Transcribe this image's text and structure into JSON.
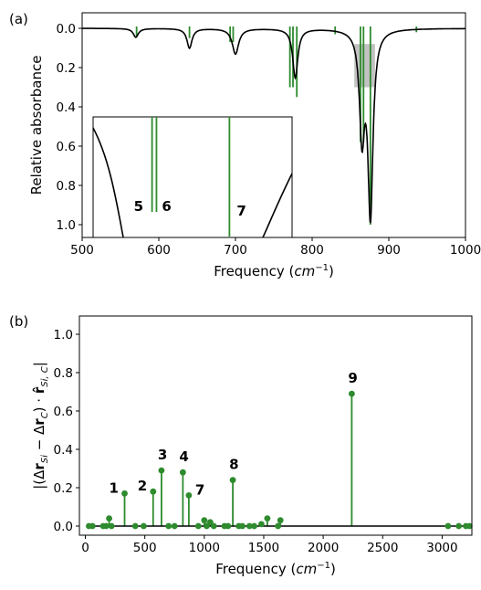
{
  "chart_data": [
    {
      "type": "line",
      "panel_label": "(a)",
      "xlabel_prefix": "Frequency (",
      "xlabel_unit": "cm",
      "xlabel_exp": "−1",
      "xlabel_suffix": ")",
      "ylabel": "Relative absorbance",
      "xlim": [
        500,
        1000
      ],
      "ylim_inverted": [
        0.0,
        1.1
      ],
      "xticks": [
        "500",
        "600",
        "700",
        "800",
        "900",
        "1000"
      ],
      "yticks": [
        "0.0",
        "0.2",
        "0.4",
        "0.6",
        "0.8",
        "1.0"
      ],
      "colors": {
        "spectrum": "#000000",
        "sticks": "#2e8b2e",
        "highlight": "#b3b3b3"
      },
      "spectrum_peaks": [
        {
          "center": 570,
          "height": 0.045,
          "width": 4
        },
        {
          "center": 640,
          "height": 0.1,
          "width": 4
        },
        {
          "center": 700,
          "height": 0.13,
          "width": 5
        },
        {
          "center": 778,
          "height": 0.25,
          "width": 4
        },
        {
          "center": 865,
          "height": 0.52,
          "width": 4
        },
        {
          "center": 876,
          "height": 0.93,
          "width": 4
        }
      ],
      "stick_frequencies": [
        571,
        640,
        693,
        697,
        771,
        775,
        780,
        830,
        863,
        867,
        876,
        936
      ],
      "stick_heights": [
        0.04,
        0.05,
        0.07,
        0.07,
        0.3,
        0.3,
        0.35,
        0.03,
        0.58,
        0.58,
        1.0,
        0.02
      ],
      "highlight_box": {
        "x": [
          855,
          882
        ],
        "y": [
          0.08,
          0.3
        ]
      },
      "inset": {
        "xlim": [
          855,
          882
        ],
        "ylim_inverted": [
          0.08,
          0.3
        ],
        "sticks": [
          {
            "label": "5",
            "x": 863
          },
          {
            "label": "6",
            "x": 863.6
          },
          {
            "label": "7",
            "x": 873.5
          }
        ]
      }
    },
    {
      "type": "stem",
      "panel_label": "(b)",
      "xlabel_prefix": "Frequency (",
      "xlabel_unit": "cm",
      "xlabel_exp": "−1",
      "xlabel_suffix": ")",
      "ylabel": "|(Δr_Si − Δr_C) · r̂_Si,C|",
      "xlim": [
        -50,
        3250
      ],
      "ylim": [
        -0.05,
        1.1
      ],
      "xticks": [
        "0",
        "500",
        "1000",
        "1500",
        "2000",
        "2500",
        "3000"
      ],
      "yticks": [
        "0.0",
        "0.2",
        "0.4",
        "0.6",
        "0.8",
        "1.0"
      ],
      "colors": {
        "stems": "#2e8b2e",
        "baseline": "#000000"
      },
      "x": [
        30,
        60,
        150,
        175,
        200,
        220,
        330,
        420,
        490,
        570,
        640,
        700,
        750,
        820,
        870,
        950,
        1000,
        1020,
        1050,
        1080,
        1170,
        1200,
        1240,
        1290,
        1320,
        1380,
        1420,
        1480,
        1530,
        1620,
        1640,
        2240,
        3050,
        3140,
        3200,
        3230
      ],
      "y": [
        0.0,
        0.0,
        0.0,
        0.0,
        0.04,
        0.0,
        0.17,
        0.0,
        0.0,
        0.18,
        0.29,
        0.0,
        0.0,
        0.28,
        0.16,
        0.0,
        0.03,
        0.0,
        0.02,
        0.0,
        0.0,
        0.0,
        0.24,
        0.0,
        0.0,
        0.0,
        0.0,
        0.01,
        0.04,
        0.0,
        0.03,
        0.69,
        0.0,
        0.0,
        0.0,
        0.0
      ],
      "labels": [
        {
          "text": "1",
          "x": 330,
          "y": 0.17
        },
        {
          "text": "2",
          "x": 570,
          "y": 0.18
        },
        {
          "text": "3",
          "x": 640,
          "y": 0.29
        },
        {
          "text": "4",
          "x": 820,
          "y": 0.28
        },
        {
          "text": "7",
          "x": 870,
          "y": 0.16
        },
        {
          "text": "8",
          "x": 1240,
          "y": 0.24
        },
        {
          "text": "9",
          "x": 2240,
          "y": 0.69
        }
      ]
    }
  ]
}
